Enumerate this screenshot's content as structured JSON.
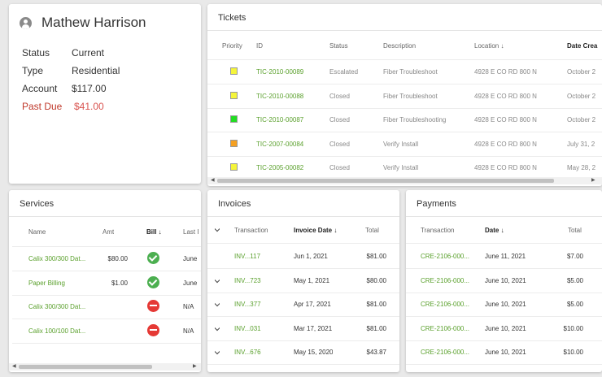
{
  "customer": {
    "name": "Mathew Harrison",
    "rows": [
      {
        "key": "Status",
        "value": "Current"
      },
      {
        "key": "Type",
        "value": "Residential"
      },
      {
        "key": "Account",
        "value": "$117.00"
      },
      {
        "key": "Past Due",
        "value": "$41.00"
      }
    ]
  },
  "tickets": {
    "title": "Tickets",
    "headers": {
      "priority": "Priority",
      "id": "ID",
      "status": "Status",
      "description": "Description",
      "location": "Location ↓",
      "date": "Date Crea"
    },
    "rows": [
      {
        "priority": "yellow",
        "id": "TIC-2010-00089",
        "status": "Escalated",
        "description": "Fiber Troubleshoot",
        "location": "4928 E CO RD 800 N",
        "date": "October 2"
      },
      {
        "priority": "yellow",
        "id": "TIC-2010-00088",
        "status": "Closed",
        "description": "Fiber Troubleshoot",
        "location": "4928 E CO RD 800 N",
        "date": "October 2"
      },
      {
        "priority": "green",
        "id": "TIC-2010-00087",
        "status": "Closed",
        "description": "Fiber Troubleshooting",
        "location": "4928 E CO RD 800 N",
        "date": "October 2"
      },
      {
        "priority": "orange",
        "id": "TIC-2007-00084",
        "status": "Closed",
        "description": "Verify Install",
        "location": "4928 E CO RD 800 N",
        "date": "July 31, 2"
      },
      {
        "priority": "yellow",
        "id": "TIC-2005-00082",
        "status": "Closed",
        "description": "Verify Install",
        "location": "4928 E CO RD 800 N",
        "date": "May 28, 2"
      }
    ],
    "colors": {
      "yellow": "#f5f53a",
      "green": "#22dd22",
      "orange": "#f5a021"
    }
  },
  "services": {
    "title": "Services",
    "headers": {
      "name": "Name",
      "amt": "Amt",
      "bill": "Bill ↓",
      "last": "Last I"
    },
    "rows": [
      {
        "name": "Calix 300/300 Dat...",
        "amt": "$80.00",
        "bill": "ok",
        "last": "June "
      },
      {
        "name": "Paper Billing",
        "amt": "$1.00",
        "bill": "ok",
        "last": "June "
      },
      {
        "name": "Calix 300/300 Dat...",
        "amt": "",
        "bill": "no",
        "last": "N/A"
      },
      {
        "name": "Calix 100/100 Dat...",
        "amt": "",
        "bill": "no",
        "last": "N/A"
      }
    ]
  },
  "invoices": {
    "title": "Invoices",
    "headers": {
      "transaction": "Transaction",
      "date": "Invoice Date ↓",
      "total": "Total"
    },
    "rows": [
      {
        "transaction": "INV...117",
        "date": "Jun 1, 2021",
        "total": "$81.00"
      },
      {
        "transaction": "INV...723",
        "date": "May 1, 2021",
        "total": "$80.00"
      },
      {
        "transaction": "INV...377",
        "date": "Apr 17, 2021",
        "total": "$81.00"
      },
      {
        "transaction": "INV...031",
        "date": "Mar 17, 2021",
        "total": "$81.00"
      },
      {
        "transaction": "INV...676",
        "date": "May 15, 2020",
        "total": "$43.87"
      }
    ]
  },
  "payments": {
    "title": "Payments",
    "headers": {
      "transaction": "Transaction",
      "date": "Date ↓",
      "total": "Total"
    },
    "rows": [
      {
        "transaction": "CRE-2106-000...",
        "date": "June 11, 2021",
        "total": "$7.00"
      },
      {
        "transaction": "CRE-2106-000...",
        "date": "June 10, 2021",
        "total": "$5.00"
      },
      {
        "transaction": "CRE-2106-000...",
        "date": "June 10, 2021",
        "total": "$5.00"
      },
      {
        "transaction": "CRE-2106-000...",
        "date": "June 10, 2021",
        "total": "$10.00"
      },
      {
        "transaction": "CRE-2106-000...",
        "date": "June 10, 2021",
        "total": "$10.00"
      }
    ]
  }
}
